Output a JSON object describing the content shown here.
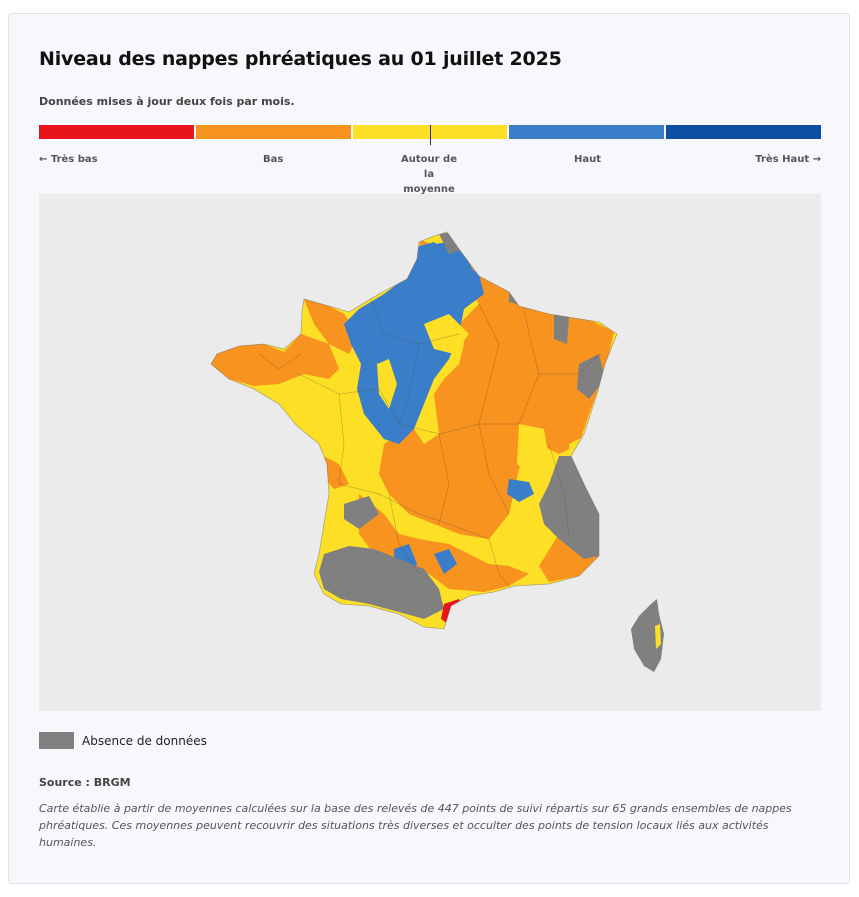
{
  "header": {
    "title": "Niveau des nappes phréatiques au 01 juillet 2025",
    "subtitle": "Données mises à jour deux fois par mois."
  },
  "scale": {
    "segments": [
      {
        "color": "#e8141c"
      },
      {
        "color": "#f7931e"
      },
      {
        "color": "#fde025"
      },
      {
        "color": "#3a7ec9"
      },
      {
        "color": "#0b4ea2"
      }
    ],
    "labels": {
      "very_low": "← Très bas",
      "low": "Bas",
      "average_line1": "Autour de la",
      "average_line2": "moyenne",
      "high": "Haut",
      "very_high": "Très Haut →"
    }
  },
  "map": {
    "colors": {
      "background": "#ebebeb",
      "no_data": "#808080",
      "very_low": "#e8141c",
      "low": "#f7931e",
      "average": "#fde025",
      "high": "#3a7ec9"
    }
  },
  "legend": {
    "no_data_label": "Absence de données",
    "no_data_color": "#808080"
  },
  "footer": {
    "source": "Source : BRGM",
    "note": "Carte établie à partir de moyennes calculées sur la base des relevés de 447 points de suivi répartis sur 65 grands ensembles de nappes phréatiques. Ces moyennes peuvent recouvrir des situations très diverses et occulter des points de tension locaux liés aux activités humaines."
  }
}
